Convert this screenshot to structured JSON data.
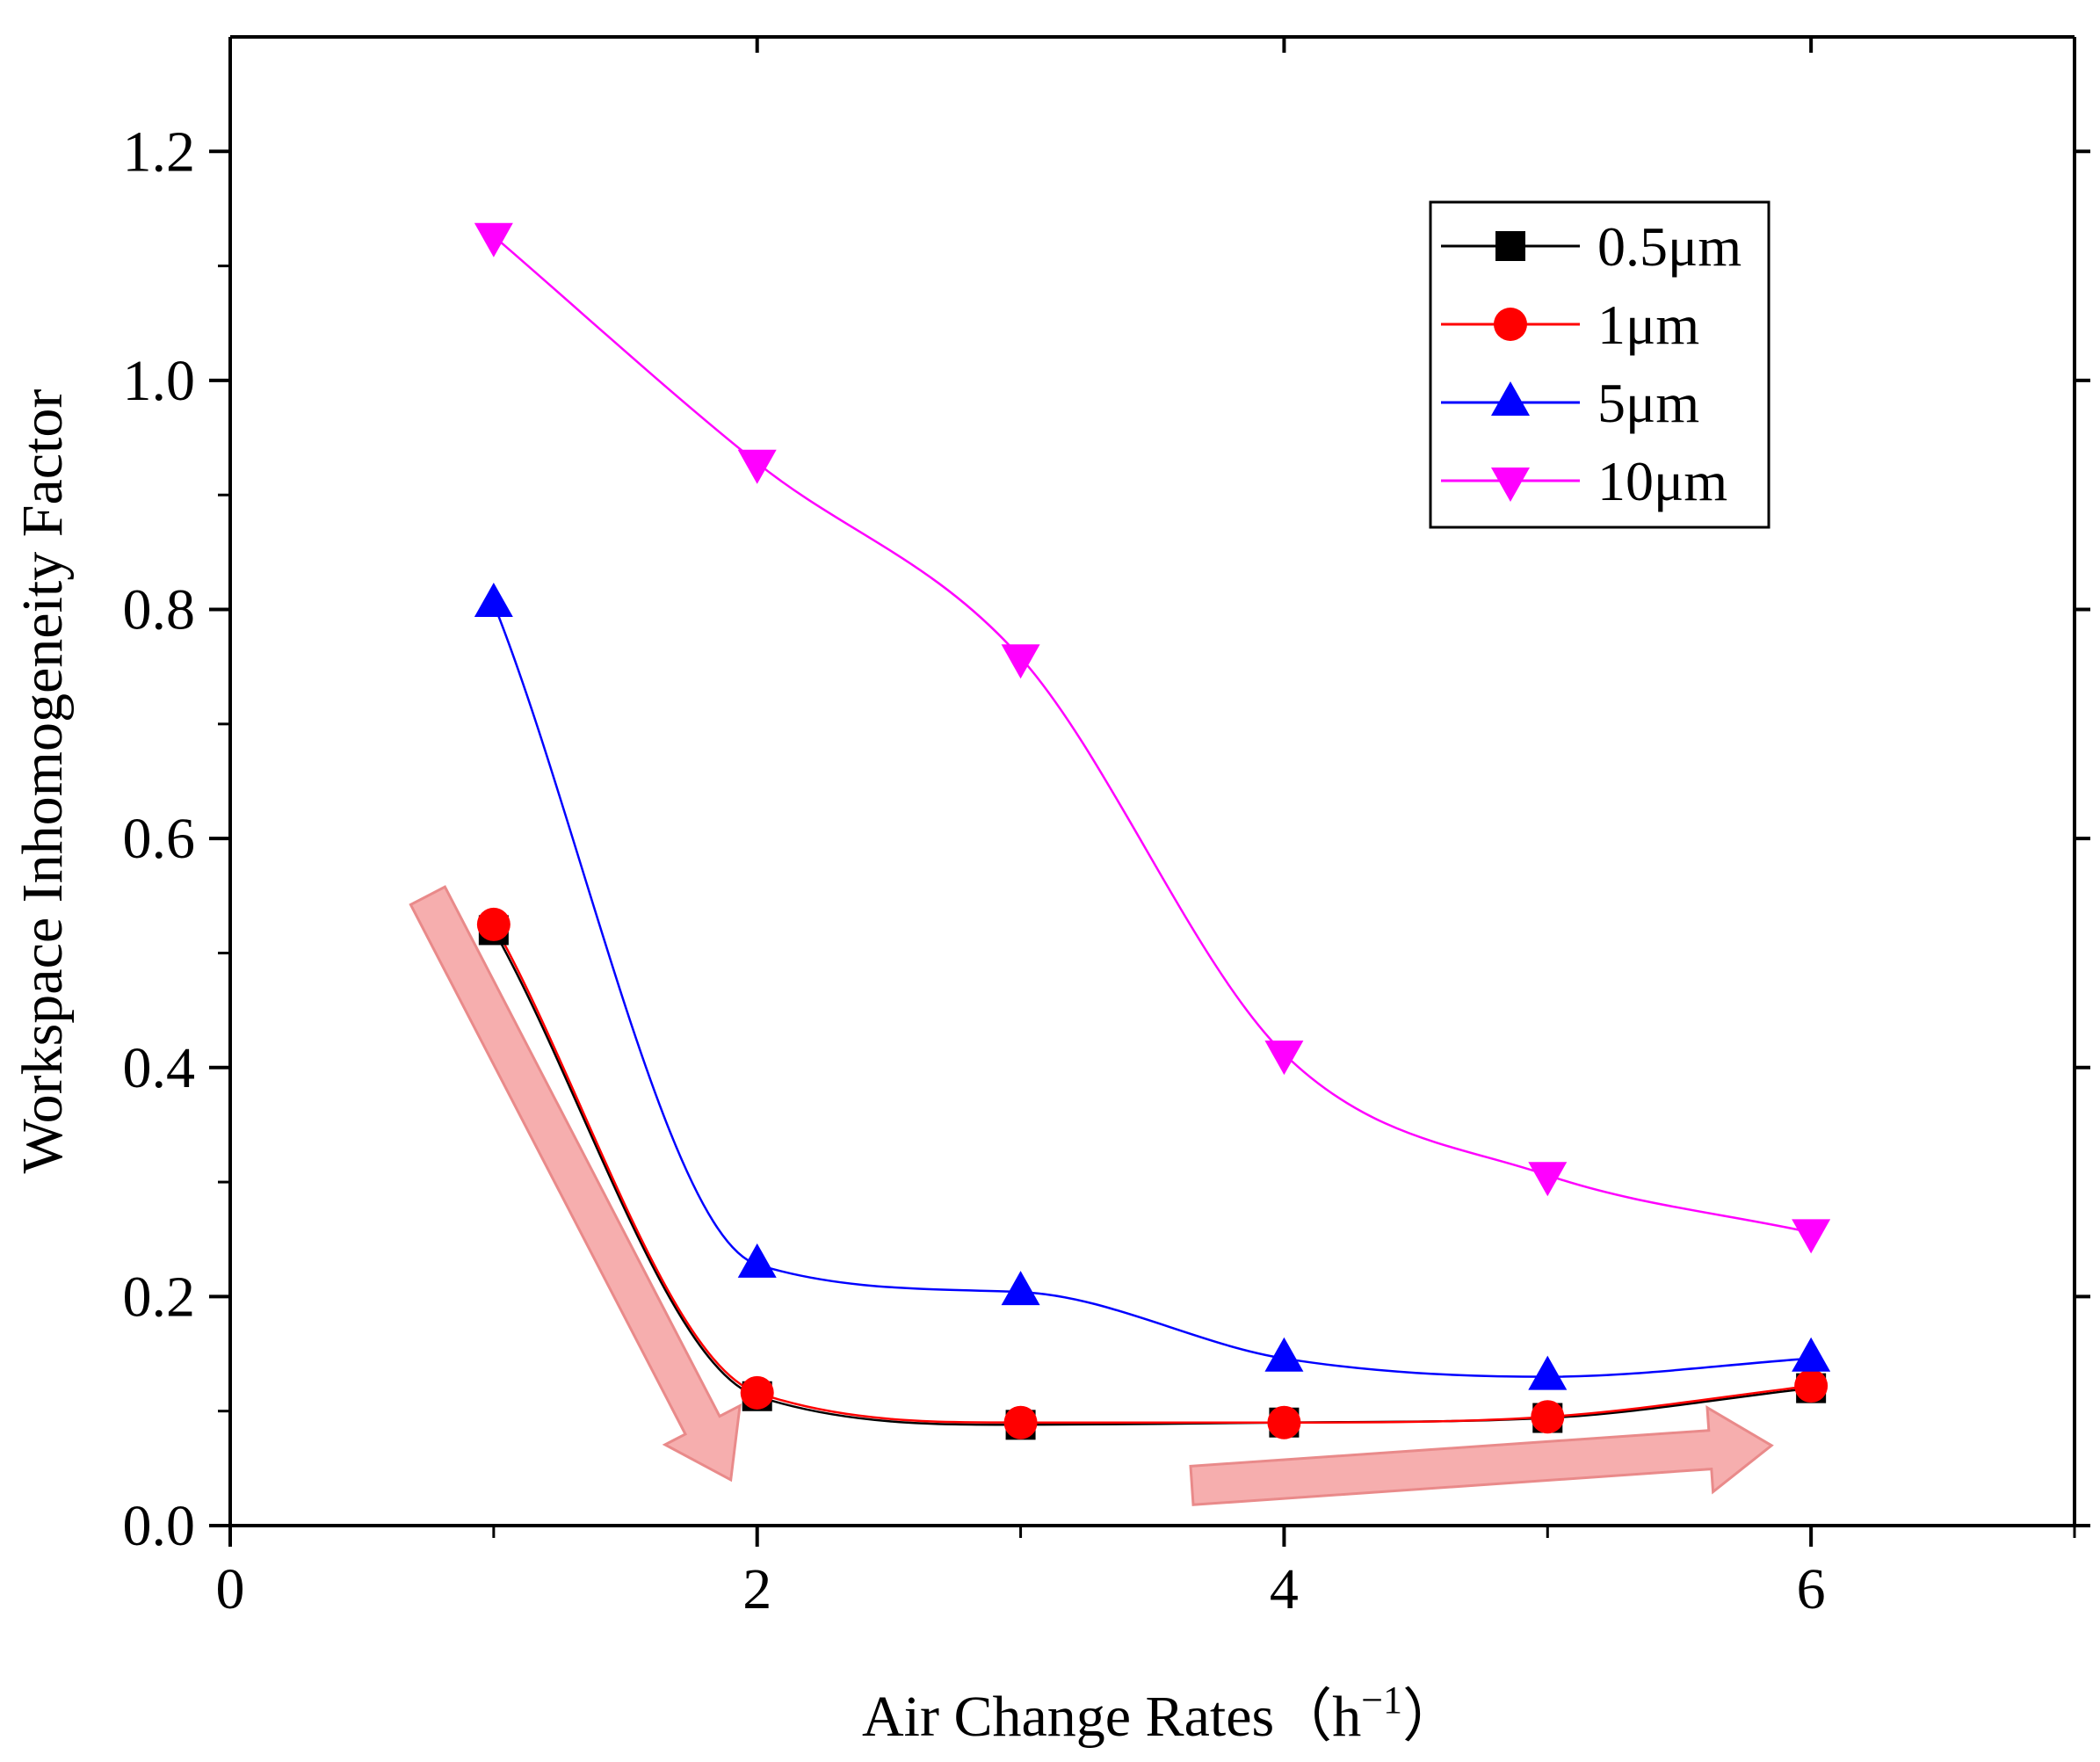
{
  "chart_data": {
    "type": "line",
    "title": "",
    "xlabel": "Air Change Rates（h",
    "xlabel_sup": "−1",
    "xlabel_end": "）",
    "ylabel": "Workspace Inhomogeneity Factor",
    "xlim": [
      0,
      7
    ],
    "ylim": [
      0,
      1.3
    ],
    "xticks": [
      0,
      2,
      4,
      6
    ],
    "xtick_labels": [
      "0",
      "2",
      "4",
      "6"
    ],
    "xminor": [
      1,
      3,
      5,
      7
    ],
    "yticks": [
      0,
      0.2,
      0.4,
      0.6,
      0.8,
      1.0,
      1.2
    ],
    "ytick_labels": [
      "0.0",
      "0.2",
      "0.4",
      "0.6",
      "0.8",
      "1.0",
      "1.2"
    ],
    "yminor": [
      0.1,
      0.3,
      0.5,
      0.7,
      0.9,
      1.1
    ],
    "grid": false,
    "legend_position": "top-right",
    "x": [
      1,
      2,
      3,
      4,
      5,
      6
    ],
    "series": [
      {
        "name": "0.5μm",
        "marker": "square",
        "color": "#000000",
        "values": [
          0.52,
          0.113,
          0.088,
          0.09,
          0.094,
          0.12
        ]
      },
      {
        "name": "1μm",
        "marker": "circle",
        "color": "#ff0000",
        "values": [
          0.525,
          0.116,
          0.09,
          0.09,
          0.095,
          0.122
        ]
      },
      {
        "name": "5μm",
        "marker": "triangle-up",
        "color": "#0000ff",
        "values": [
          0.805,
          0.228,
          0.204,
          0.146,
          0.13,
          0.146
        ]
      },
      {
        "name": "10μm",
        "marker": "triangle-down",
        "color": "#ff00ff",
        "values": [
          1.126,
          0.928,
          0.758,
          0.412,
          0.306,
          0.256
        ]
      }
    ],
    "annotations": [
      {
        "type": "arrow",
        "color": "#f4a0a0",
        "from": [
          0.75,
          0.55
        ],
        "to": [
          1.9,
          0.04
        ],
        "description": "decreasing trend"
      },
      {
        "type": "arrow",
        "color": "#f4a0a0",
        "from": [
          3.65,
          0.035
        ],
        "to": [
          5.85,
          0.07
        ],
        "description": "increasing trend"
      }
    ]
  }
}
